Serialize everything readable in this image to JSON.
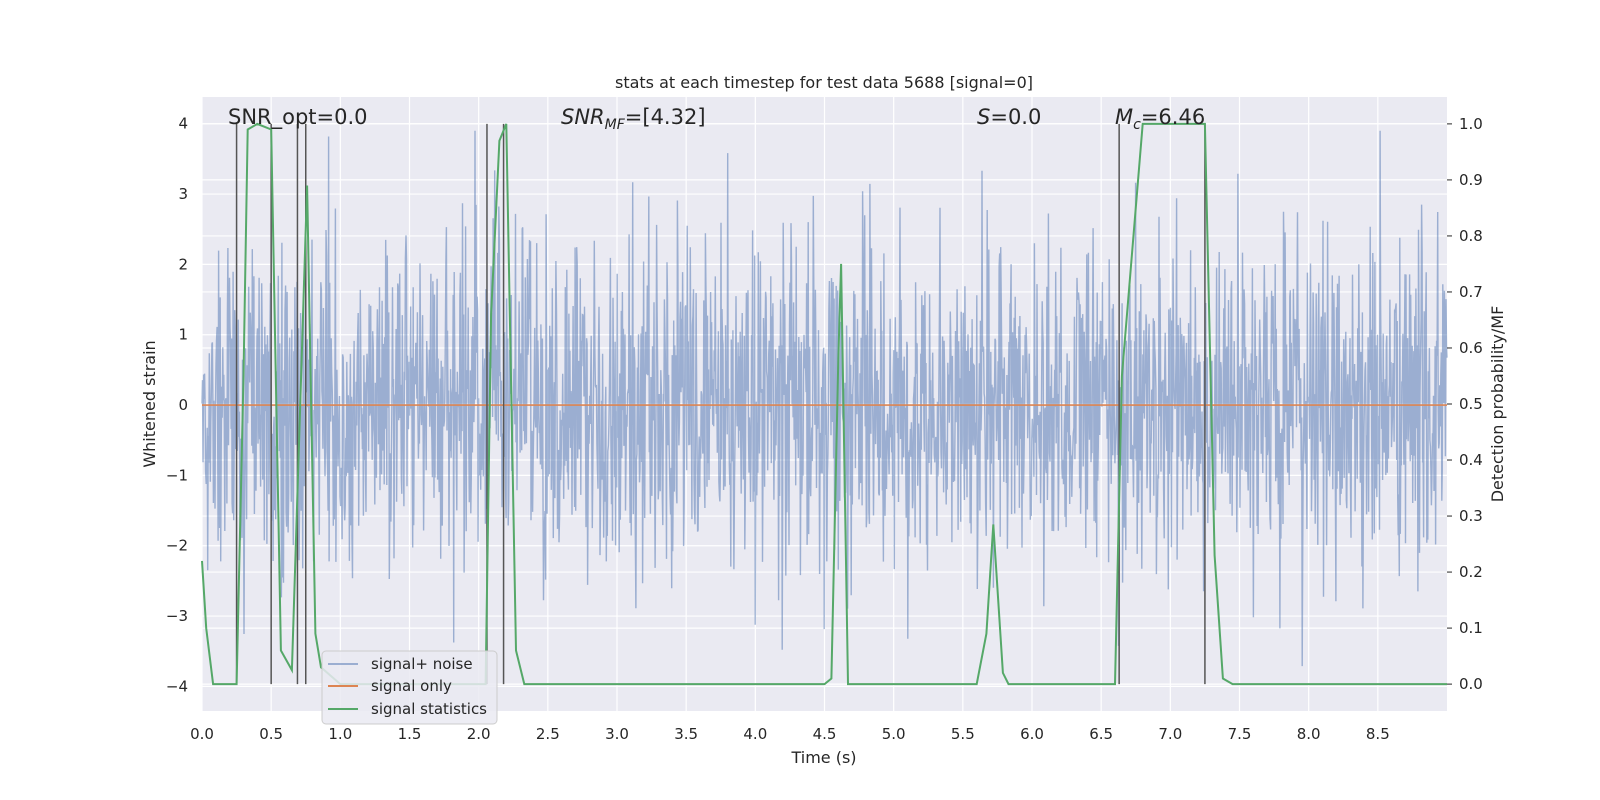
{
  "chart_data": {
    "type": "line",
    "title": "stats at each timestep for test data 5688 [signal=0]",
    "xlabel": "Time (s)",
    "ylabel_left": "Whitened strain",
    "ylabel_right": "Detection probability/MF",
    "xlim": [
      0,
      9.0
    ],
    "ylim_left": [
      -4.35,
      4.38
    ],
    "ylim_right": [
      -0.048,
      1.048
    ],
    "x_ticks": [
      "0.0",
      "0.5",
      "1.0",
      "1.5",
      "2.0",
      "2.5",
      "3.0",
      "3.5",
      "4.0",
      "4.5",
      "5.0",
      "5.5",
      "6.0",
      "6.5",
      "7.0",
      "7.5",
      "8.0",
      "8.5"
    ],
    "y_left_ticks": [
      "-4",
      "-3",
      "-2",
      "-1",
      "0",
      "1",
      "2",
      "3",
      "4"
    ],
    "y_right_ticks": [
      "0.0",
      "0.1",
      "0.2",
      "0.3",
      "0.4",
      "0.5",
      "0.6",
      "0.7",
      "0.8",
      "0.9",
      "1.0"
    ],
    "grid": true,
    "legend_position": "lower-left",
    "annotations": [
      {
        "text": "SNR_opt=0.0",
        "x": 0.2,
        "y": 4.0
      },
      {
        "text": "SNR_MF=[4.32]",
        "x": 2.6,
        "y": 4.0
      },
      {
        "text": "S=0.0",
        "x": 5.6,
        "y": 4.0
      },
      {
        "text": "M_c=6.46",
        "x": 6.6,
        "y": 4.0
      }
    ],
    "series": [
      {
        "name": "signal+ noise",
        "axis": "left",
        "color": "#4c72b0",
        "opacity": 0.5,
        "note": "dense whitened strain noise, roughly +/-1.6 typical, peaks to about +/-3.9",
        "x_range": [
          0,
          9.0
        ]
      },
      {
        "name": "signal only",
        "axis": "left",
        "color": "#dd8452",
        "x": [
          0,
          9.0
        ],
        "y": [
          0,
          0
        ]
      },
      {
        "name": "signal statistics",
        "axis": "right",
        "color": "#55a868",
        "x": [
          0.0,
          0.03,
          0.08,
          0.25,
          0.3,
          0.33,
          0.4,
          0.5,
          0.57,
          0.65,
          0.76,
          0.82,
          0.86,
          1.0,
          1.1,
          1.5,
          2.0,
          2.05,
          2.09,
          2.15,
          2.2,
          2.27,
          2.33,
          2.5,
          3.0,
          3.5,
          4.0,
          4.5,
          4.55,
          4.6,
          4.62,
          4.67,
          4.72,
          5.0,
          5.5,
          5.6,
          5.67,
          5.72,
          5.79,
          5.83,
          6.0,
          6.5,
          6.6,
          6.65,
          6.8,
          7.0,
          7.25,
          7.32,
          7.38,
          7.45,
          8.0,
          8.5,
          9.0
        ],
        "y": [
          0.22,
          0.1,
          0.0,
          0.0,
          0.55,
          0.99,
          1.0,
          0.99,
          0.06,
          0.025,
          0.89,
          0.09,
          0.03,
          0.0,
          0.0,
          0.0,
          0.0,
          0.0,
          0.66,
          0.97,
          1.0,
          0.06,
          0.0,
          0.0,
          0.0,
          0.0,
          0.0,
          0.0,
          0.01,
          0.58,
          0.75,
          0.0,
          0.0,
          0.0,
          0.0,
          0.0,
          0.09,
          0.285,
          0.02,
          0.0,
          0.0,
          0.0,
          0.0,
          0.55,
          1.0,
          1.0,
          1.0,
          0.23,
          0.01,
          0.0,
          0.0,
          0.0,
          0.0
        ]
      },
      {
        "name": "",
        "axis": "right",
        "kind": "vertical-markers",
        "color": "#555555",
        "x": [
          0.25,
          0.5,
          0.69,
          0.75,
          2.06,
          2.18,
          6.63,
          7.25
        ],
        "y_bottom": 0.0,
        "y_top": 1.0
      }
    ]
  }
}
